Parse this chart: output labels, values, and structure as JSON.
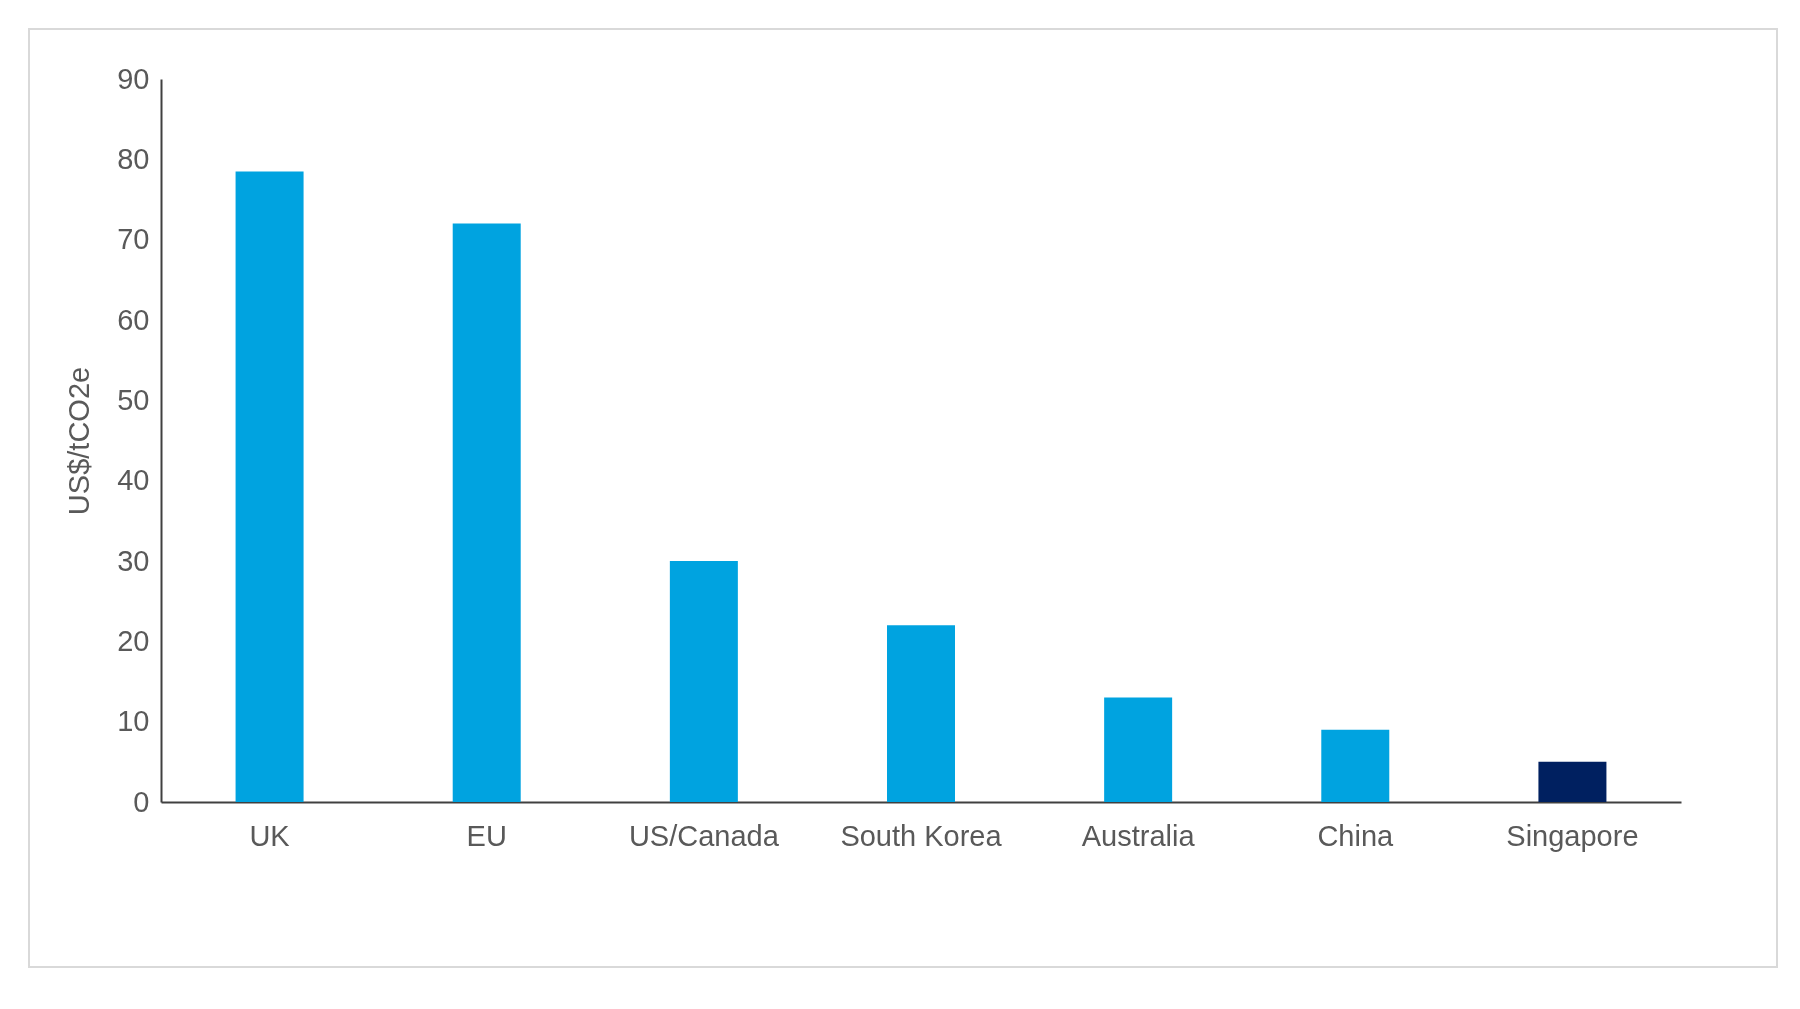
{
  "chart_data": {
    "type": "bar",
    "ylabel": "US$/tCO2e",
    "categories": [
      "UK",
      "EU",
      "US/Canada",
      "South Korea",
      "Australia",
      "China",
      "Singapore"
    ],
    "values": [
      78.5,
      72,
      30,
      22,
      13,
      9,
      5
    ],
    "colors": [
      "#00a3e0",
      "#00a3e0",
      "#00a3e0",
      "#00a3e0",
      "#00a3e0",
      "#00a3e0",
      "#002060"
    ],
    "ylim": [
      0,
      90
    ],
    "yticks": [
      0,
      10,
      20,
      30,
      40,
      50,
      60,
      70,
      80,
      90
    ],
    "grid": false,
    "legend": false
  }
}
